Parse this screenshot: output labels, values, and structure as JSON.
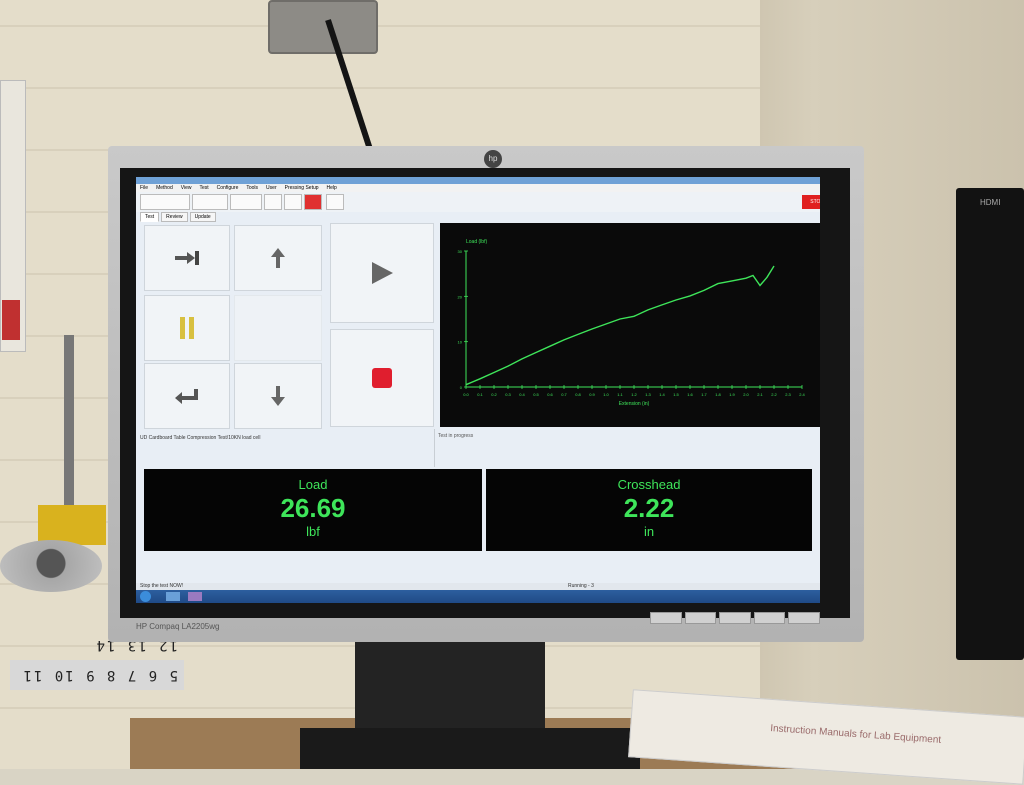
{
  "app": {
    "title": "",
    "menu": [
      "File",
      "Method",
      "View",
      "Test",
      "Configure",
      "Tools",
      "User",
      "Pressing Setup",
      "Help"
    ],
    "stop_label": "STOP",
    "tabs": [
      "Test",
      "Review",
      "Update"
    ]
  },
  "controls": {
    "icons": [
      "jog-to-icon",
      "up-arrow-icon",
      "play-icon",
      "pause-icon",
      "return-icon",
      "down-arrow-icon",
      "stop-square-icon"
    ]
  },
  "chart_data": {
    "type": "line",
    "ylabel": "Load (lbf)",
    "xlabel": "Extension (in)",
    "xlim": [
      0,
      2.4
    ],
    "ylim": [
      0,
      30
    ],
    "xticks": [
      "0.0",
      "0.1",
      "0.2",
      "0.3",
      "0.4",
      "0.5",
      "0.6",
      "0.7",
      "0.8",
      "0.9",
      "1.0",
      "1.1",
      "1.2",
      "1.3",
      "1.4",
      "1.5",
      "1.6",
      "1.7",
      "1.8",
      "1.9",
      "2.0",
      "2.1",
      "2.2",
      "2.3",
      "2.4"
    ],
    "yticks": [
      "0",
      "10",
      "20",
      "30"
    ],
    "color": "#3ee55a",
    "series": [
      {
        "x": [
          0.0,
          0.1,
          0.2,
          0.3,
          0.4,
          0.5,
          0.6,
          0.7,
          0.8,
          0.9,
          1.0,
          1.1,
          1.2,
          1.3,
          1.4,
          1.5,
          1.6,
          1.7,
          1.8,
          1.9,
          2.0,
          2.05,
          2.1,
          2.15,
          2.2
        ],
        "y": [
          0.5,
          1.8,
          3.2,
          4.6,
          6.2,
          7.6,
          9.0,
          10.4,
          11.6,
          12.8,
          13.9,
          15.0,
          15.6,
          17.0,
          18.1,
          19.2,
          20.1,
          21.3,
          22.8,
          23.4,
          24.0,
          24.6,
          22.4,
          24.2,
          26.7
        ]
      }
    ]
  },
  "status": {
    "test_info": "UD Cardboard Table Compression Test/10KN load cell",
    "progress": "Test in progress"
  },
  "readouts": [
    {
      "name": "Load",
      "value": "26.69",
      "unit": "lbf"
    },
    {
      "name": "Crosshead",
      "value": "2.22",
      "unit": "in"
    }
  ],
  "statusbar": {
    "left": "Stop the test NOW!",
    "running": "Running - 3"
  },
  "monitor": {
    "brand": "HP Compaq LA2205wg"
  },
  "env": {
    "ruler": "5 6 7 8 9 10 11 12 13 14",
    "manual": "Instruction Manuals for Lab Equipment"
  }
}
